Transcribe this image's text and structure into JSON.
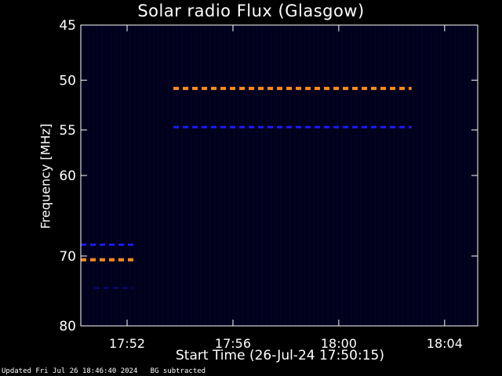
{
  "page": {
    "title": "Solar radio Flux (Glasgow)",
    "x_axis_title": "Start Time (26-Jul-24 17:50:15)",
    "y_axis_title": "Frequency [MHz]",
    "footer_updated": "Updated Fri Jul 26 18:46:40 2024",
    "footer_note": "BG subtracted"
  },
  "chart_data": {
    "type": "heatmap",
    "title": "Solar radio Flux (Glasgow)",
    "xlabel": "Start Time (26-Jul-24 17:50:15)",
    "ylabel": "Frequency [MHz]",
    "x_unit": "minutes",
    "xlim": [
      "17:50:15",
      "18:05:15"
    ],
    "x_ticks": [
      "17:52",
      "17:56",
      "18:00",
      "18:04"
    ],
    "x_tick_values": [
      "17:52:00",
      "17:56:00",
      "18:00:00",
      "18:04:00"
    ],
    "y_scale": "log",
    "ylim": [
      45,
      80
    ],
    "y_ticks": [
      "45",
      "50",
      "55",
      "60",
      "70",
      "80"
    ],
    "y_tick_values": [
      45,
      50,
      55,
      60,
      70,
      80
    ],
    "background_color": "#00001a",
    "series": [
      {
        "color": "#ff8c1a",
        "frequency": 70.5,
        "x_start": "17:50:15",
        "x_end": "17:52:15"
      },
      {
        "color": "#1a1aff",
        "frequency": 68.5,
        "x_start": "17:50:15",
        "x_end": "17:52:15"
      },
      {
        "color": "#0a0a88",
        "frequency": 74.4,
        "x_start": "17:50:45",
        "x_end": "17:52:15"
      },
      {
        "color": "#ff8c1a",
        "frequency": 50.8,
        "x_start": "17:53:45",
        "x_end": "18:02:45"
      },
      {
        "color": "#1a1aff",
        "frequency": 54.7,
        "x_start": "17:53:45",
        "x_end": "18:02:45"
      }
    ]
  }
}
